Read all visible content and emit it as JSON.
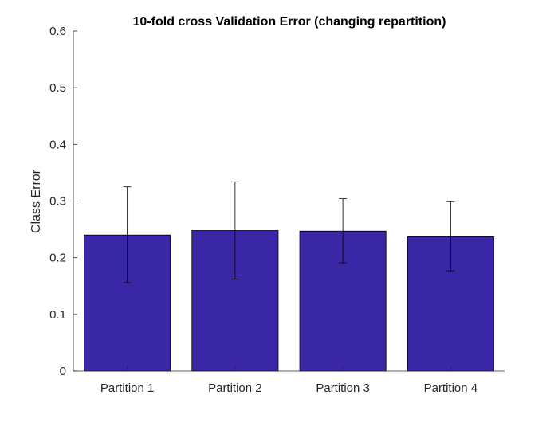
{
  "chart_data": {
    "type": "bar",
    "title": "10-fold cross Validation Error (changing repartition)",
    "xlabel": "",
    "ylabel": "Class Error",
    "categories": [
      "Partition 1",
      "Partition 2",
      "Partition 3",
      "Partition 4"
    ],
    "values": [
      0.24,
      0.248,
      0.247,
      0.237
    ],
    "error_low": [
      0.156,
      0.162,
      0.191,
      0.177
    ],
    "error_high": [
      0.325,
      0.334,
      0.304,
      0.299
    ],
    "ylim": [
      0,
      0.6
    ],
    "yticks": [
      "0",
      "0.1",
      "0.2",
      "0.3",
      "0.4",
      "0.5",
      "0.6"
    ],
    "ytick_values": [
      0,
      0.1,
      0.2,
      0.3,
      0.4,
      0.5,
      0.6
    ],
    "bar_color": "#3a27a6",
    "grid": false,
    "legend": "none"
  }
}
